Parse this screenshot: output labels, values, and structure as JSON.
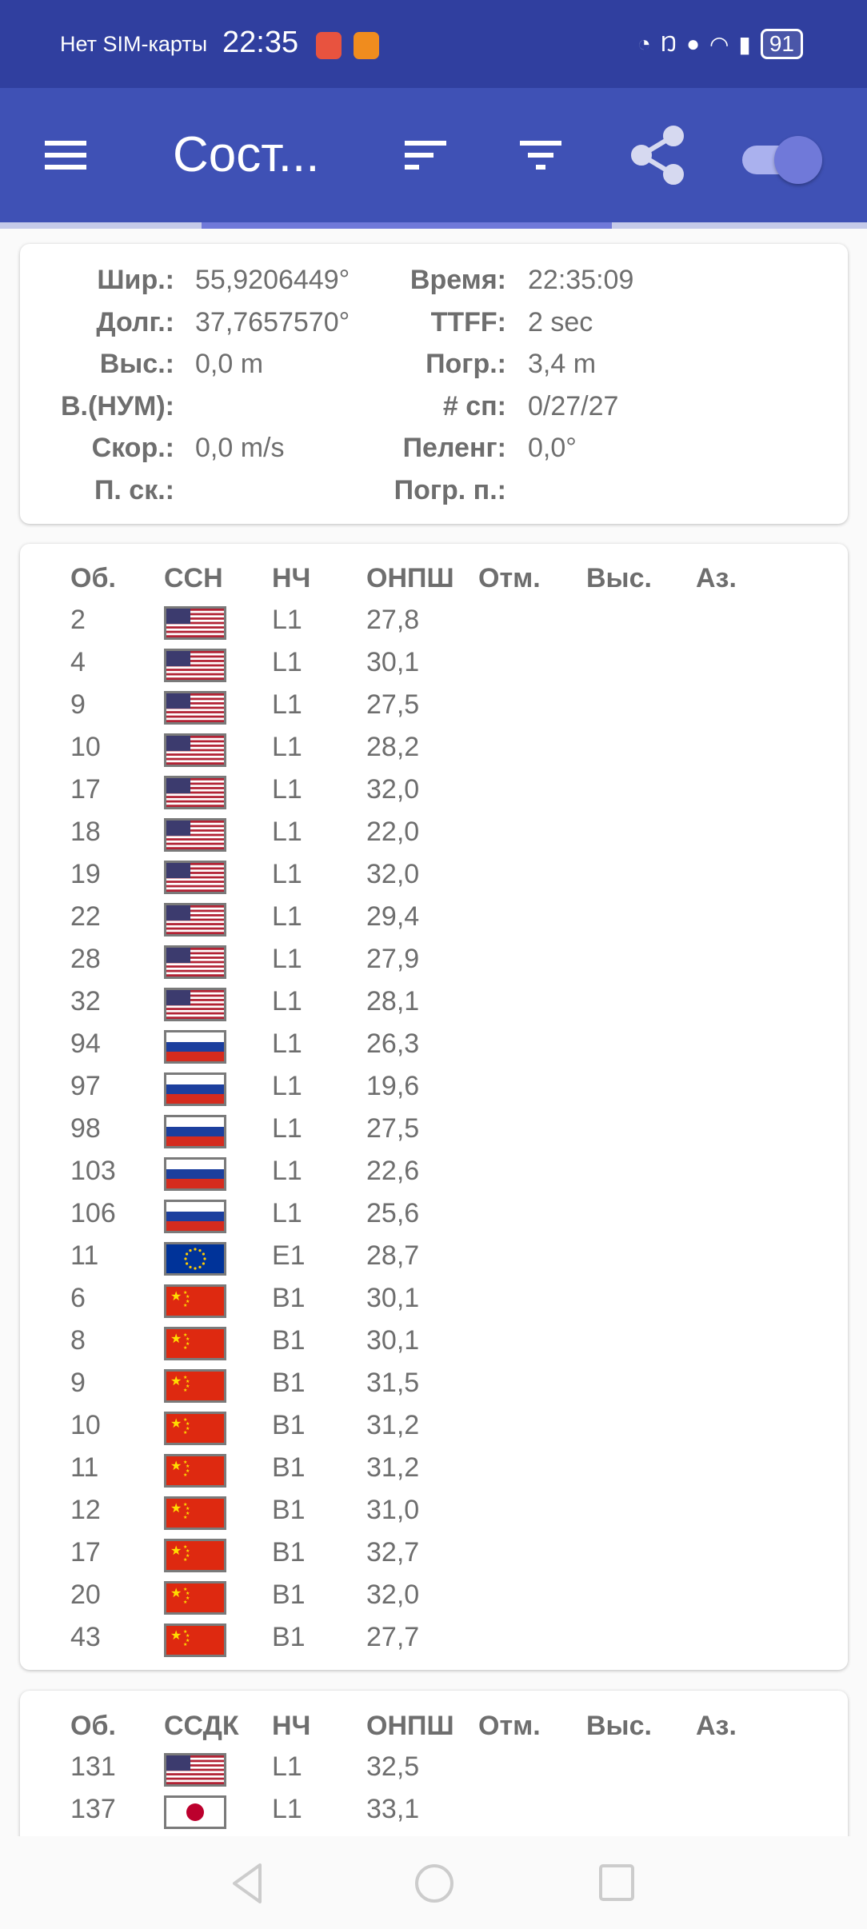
{
  "status_bar": {
    "carrier": "Нет SIM-карты",
    "time": "22:35",
    "battery": "91",
    "icons": [
      "speedometer-icon",
      "nfc-icon",
      "location-icon",
      "wifi-icon",
      "alert-icon"
    ]
  },
  "toolbar": {
    "title": "Сост...",
    "actions": [
      "sort-icon",
      "filter-icon",
      "share-icon",
      "toggle-switch"
    ],
    "toggle_on": true
  },
  "colors": {
    "status_bar": "#303f9f",
    "toolbar": "#3f51b5",
    "tab_indicator": "#7079d9"
  },
  "fix": {
    "left": [
      {
        "label": "Шир.:",
        "value": "55,9206449°"
      },
      {
        "label": "Долг.:",
        "value": "37,7657570°"
      },
      {
        "label": "Выс.:",
        "value": "0,0 m"
      },
      {
        "label": "В.(НУМ):",
        "value": ""
      },
      {
        "label": "Скор.:",
        "value": "0,0 m/s"
      },
      {
        "label": "П. ск.:",
        "value": ""
      }
    ],
    "right": [
      {
        "label": "Время:",
        "value": "22:35:09"
      },
      {
        "label": "TTFF:",
        "value": "2 sec"
      },
      {
        "label": "Погр.:",
        "value": "3,4 m"
      },
      {
        "label": "# сп:",
        "value": "0/27/27"
      },
      {
        "label": "Пеленг:",
        "value": "0,0°"
      },
      {
        "label": "Погр. п.:",
        "value": ""
      }
    ]
  },
  "gnss": {
    "headers": [
      "Об.",
      "ССН",
      "НЧ",
      "ОНПШ",
      "Отм.",
      "Выс.",
      "Аз."
    ],
    "rows": [
      {
        "id": "2",
        "flag": "us",
        "freq": "L1",
        "cn0": "27,8"
      },
      {
        "id": "4",
        "flag": "us",
        "freq": "L1",
        "cn0": "30,1"
      },
      {
        "id": "9",
        "flag": "us",
        "freq": "L1",
        "cn0": "27,5"
      },
      {
        "id": "10",
        "flag": "us",
        "freq": "L1",
        "cn0": "28,2"
      },
      {
        "id": "17",
        "flag": "us",
        "freq": "L1",
        "cn0": "32,0"
      },
      {
        "id": "18",
        "flag": "us",
        "freq": "L1",
        "cn0": "22,0"
      },
      {
        "id": "19",
        "flag": "us",
        "freq": "L1",
        "cn0": "32,0"
      },
      {
        "id": "22",
        "flag": "us",
        "freq": "L1",
        "cn0": "29,4"
      },
      {
        "id": "28",
        "flag": "us",
        "freq": "L1",
        "cn0": "27,9"
      },
      {
        "id": "32",
        "flag": "us",
        "freq": "L1",
        "cn0": "28,1"
      },
      {
        "id": "94",
        "flag": "ru",
        "freq": "L1",
        "cn0": "26,3"
      },
      {
        "id": "97",
        "flag": "ru",
        "freq": "L1",
        "cn0": "19,6"
      },
      {
        "id": "98",
        "flag": "ru",
        "freq": "L1",
        "cn0": "27,5"
      },
      {
        "id": "103",
        "flag": "ru",
        "freq": "L1",
        "cn0": "22,6"
      },
      {
        "id": "106",
        "flag": "ru",
        "freq": "L1",
        "cn0": "25,6"
      },
      {
        "id": "11",
        "flag": "eu",
        "freq": "E1",
        "cn0": "28,7"
      },
      {
        "id": "6",
        "flag": "cn",
        "freq": "B1",
        "cn0": "30,1"
      },
      {
        "id": "8",
        "flag": "cn",
        "freq": "B1",
        "cn0": "30,1"
      },
      {
        "id": "9",
        "flag": "cn",
        "freq": "B1",
        "cn0": "31,5"
      },
      {
        "id": "10",
        "flag": "cn",
        "freq": "B1",
        "cn0": "31,2"
      },
      {
        "id": "11",
        "flag": "cn",
        "freq": "B1",
        "cn0": "31,2"
      },
      {
        "id": "12",
        "flag": "cn",
        "freq": "B1",
        "cn0": "31,0"
      },
      {
        "id": "17",
        "flag": "cn",
        "freq": "B1",
        "cn0": "32,7"
      },
      {
        "id": "20",
        "flag": "cn",
        "freq": "B1",
        "cn0": "32,0"
      },
      {
        "id": "43",
        "flag": "cn",
        "freq": "B1",
        "cn0": "27,7"
      }
    ]
  },
  "sbas": {
    "headers": [
      "Об.",
      "ССДК",
      "НЧ",
      "ОНПШ",
      "Отм.",
      "Выс.",
      "Аз."
    ],
    "rows": [
      {
        "id": "131",
        "flag": "us",
        "freq": "L1",
        "cn0": "32,5"
      },
      {
        "id": "137",
        "flag": "jp",
        "freq": "L1",
        "cn0": "33,1"
      }
    ]
  }
}
